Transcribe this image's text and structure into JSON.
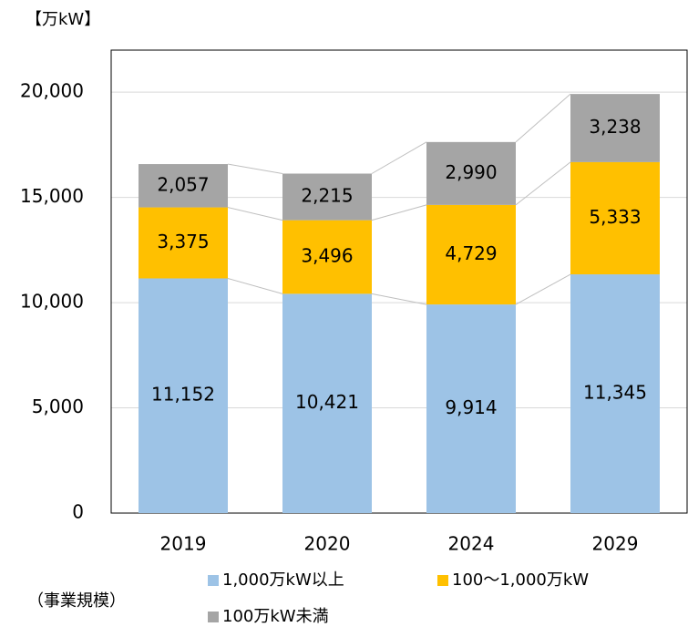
{
  "chart_data": {
    "type": "stacked_bar",
    "unit_label": "【万kW】",
    "note": "（事業規模）",
    "categories": [
      "2019",
      "2020",
      "2024",
      "2029"
    ],
    "series": [
      {
        "name": "1,000万kW以上",
        "color": "#9dc3e6",
        "values": [
          11152,
          10421,
          9914,
          11345
        ],
        "value_labels": [
          "11,152",
          "10,421",
          "9,914",
          "11,345"
        ]
      },
      {
        "name": "100～1,000万kW",
        "color": "#ffc000",
        "values": [
          3375,
          3496,
          4729,
          5333
        ],
        "value_labels": [
          "3,375",
          "3,496",
          "4,729",
          "5,333"
        ]
      },
      {
        "name": "100万kW未満",
        "color": "#a5a5a5",
        "values": [
          2057,
          2215,
          2990,
          3238
        ],
        "value_labels": [
          "2,057",
          "2,215",
          "2,990",
          "3,238"
        ]
      }
    ],
    "ylim": [
      0,
      22000
    ],
    "yticks": [
      0,
      {
        "value": 5000,
        "label": "5,000"
      },
      {
        "value": 10000,
        "label": "10,000"
      },
      {
        "value": 15000,
        "label": "15,000"
      },
      {
        "value": 20000,
        "label": "20,000"
      }
    ],
    "grid": true
  }
}
